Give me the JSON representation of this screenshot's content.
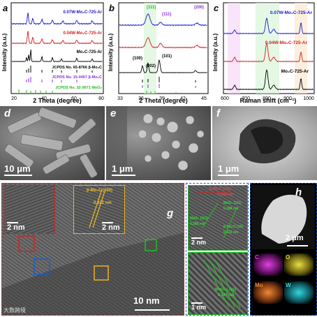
{
  "panels": {
    "a": {
      "label": "a",
      "xlabel": "2 Theta (degree)",
      "ylabel": "Intensity (a.u.)",
      "xticks": [
        "20",
        "40",
        "60",
        "80"
      ],
      "series": [
        {
          "name": "0.07W-Mo₂C-725-Ar",
          "color": "#1a1acc"
        },
        {
          "name": "0.04W-Mo₂C-725-Ar",
          "color": "#d42020"
        },
        {
          "name": "Mo₂C-725-Ar",
          "color": "#000000"
        }
      ],
      "refs": [
        {
          "name": "JCPDS No. 65-8766 β-Mo₂C",
          "color": "#000000"
        },
        {
          "name": "JCPDS No. 15-0457 β-Mo₂C",
          "color": "#8a2be2"
        },
        {
          "name": "JCPDS No. 32-0671 MoO₂",
          "color": "#22bb22"
        }
      ]
    },
    "b": {
      "label": "b",
      "xlabel": "2 Theta (degree)",
      "ylabel": "Intensity (a.u.)",
      "xticks": [
        "33",
        "36",
        "39",
        "42",
        "45"
      ],
      "annotations": [
        "(100)",
        "(002)",
        "(101)",
        "(200)",
        "(111)",
        "(111)"
      ]
    },
    "c": {
      "label": "c",
      "xlabel": "Raman shift (cm⁻¹)",
      "ylabel": "Intensity (a.u.)",
      "xticks": [
        "600",
        "700",
        "800",
        "900",
        "1000"
      ],
      "series": [
        {
          "name": "0.07W-Mo₂C-725-Ar",
          "color": "#1a1acc"
        },
        {
          "name": "0.04W-Mo₂C-725-Ar",
          "color": "#d42020"
        },
        {
          "name": "Mo₂C-725-Ar",
          "color": "#000000"
        }
      ]
    },
    "d": {
      "label": "d",
      "scale": "10 μm"
    },
    "e": {
      "label": "e",
      "scale": "1 μm"
    },
    "f": {
      "label": "f",
      "scale": "1 μm"
    },
    "g": {
      "label": "g",
      "scale": "10 nm",
      "inset1_scale": "2 nm",
      "inset2_scale": "2 nm",
      "inset2_text": "β-Mo₂C (100)",
      "inset2_d": "0.222 nm",
      "watermark": "大数跨境"
    },
    "g_right": {
      "top_scale": "2 nm",
      "top_texts": [
        "β-Mo₂C (100)",
        "0.229 nm",
        "MoO₂ (111)",
        "0.188 nm",
        "MoO₂ (101)",
        "0.285 nm",
        "β-Mo₂C (10)",
        "0.222 nm"
      ],
      "bottom_scale": "1 nm",
      "bottom_texts": [
        "MoO₂ (-111)",
        "0.347 nm"
      ]
    },
    "h": {
      "label": "h",
      "scale": "2 μm",
      "maps": [
        {
          "element": "C",
          "color": "#e040e0"
        },
        {
          "element": "O",
          "color": "#e8e040"
        },
        {
          "element": "Mo",
          "color": "#f08a30"
        },
        {
          "element": "W",
          "color": "#30d8e0"
        }
      ]
    }
  }
}
